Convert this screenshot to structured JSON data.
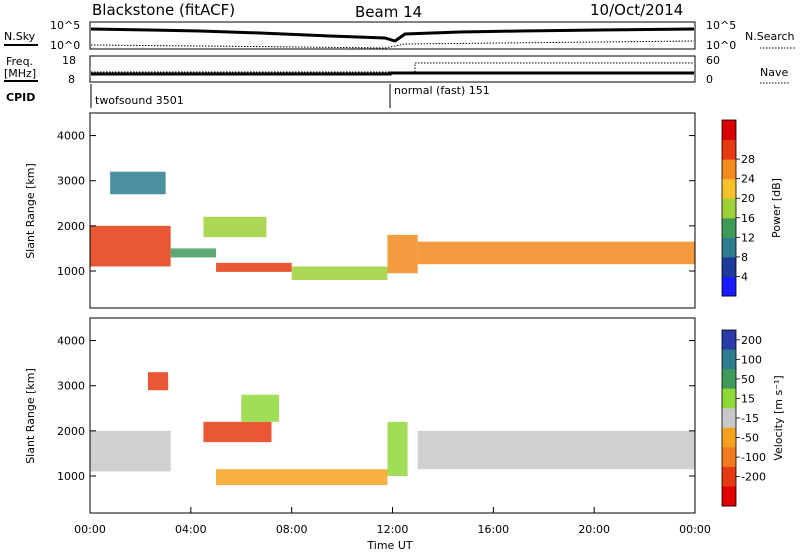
{
  "header": {
    "title": "Blackstone (fitACF)",
    "beam": "Beam 14",
    "date": "10/Oct/2014"
  },
  "top_panels": {
    "nsky_label": "N.Sky",
    "nsky_ticks": [
      "10^5",
      "10^0"
    ],
    "nsearch_label": "N.Search",
    "freq_label_1": "Freq.",
    "freq_label_2": "[MHz]",
    "freq_ticks": [
      "18",
      "8"
    ],
    "nave_ticks": [
      "60",
      "0"
    ],
    "nave_label": "Nave",
    "cpid_label": "CPID",
    "cpid_1": "twofsound 3501",
    "cpid_2": "normal (fast) 151"
  },
  "chart_data": [
    {
      "type": "heatmap",
      "name": "power",
      "ylabel": "Slant Range [km]",
      "xlabel": "",
      "xlim_hours": [
        0,
        24
      ],
      "ylim_km": [
        180,
        4500
      ],
      "y_ticks": [
        "1000",
        "2000",
        "3000",
        "4000"
      ],
      "y_tick_values": [
        1000,
        2000,
        3000,
        4000
      ],
      "colorbar_label": "Power [dB]",
      "colorbar_ticks": [
        "4",
        "8",
        "12",
        "16",
        "20",
        "24",
        "28"
      ],
      "colorbar_colors": [
        "#1a1aff",
        "#1f3a9a",
        "#2e7d8f",
        "#3f9a5a",
        "#9fd03a",
        "#f4c12a",
        "#f28a1e",
        "#e53a12",
        "#d80000"
      ],
      "echo_bands": [
        {
          "t0": 0.0,
          "t1": 3.2,
          "r0": 1100,
          "r1": 2000,
          "level": 26
        },
        {
          "t0": 3.2,
          "t1": 5.0,
          "r0": 1300,
          "r1": 1500,
          "level": 12
        },
        {
          "t0": 5.0,
          "t1": 8.0,
          "r0": 980,
          "r1": 1180,
          "level": 24
        },
        {
          "t0": 8.0,
          "t1": 11.8,
          "r0": 800,
          "r1": 1100,
          "level": 14
        },
        {
          "t0": 11.8,
          "t1": 13.0,
          "r0": 950,
          "r1": 1800,
          "level": 22
        },
        {
          "t0": 13.0,
          "t1": 24.0,
          "r0": 1150,
          "r1": 1650,
          "level": 22
        },
        {
          "t0": 4.5,
          "t1": 7.0,
          "r0": 1750,
          "r1": 2200,
          "level": 16
        },
        {
          "t0": 0.8,
          "t1": 3.0,
          "r0": 2700,
          "r1": 3200,
          "level": 10
        }
      ]
    },
    {
      "type": "heatmap",
      "name": "velocity",
      "ylabel": "Slant Range [km]",
      "xlabel": "Time UT",
      "xlim_hours": [
        0,
        24
      ],
      "ylim_km": [
        180,
        4500
      ],
      "x_ticks": [
        "00:00",
        "04:00",
        "08:00",
        "12:00",
        "16:00",
        "20:00",
        "00:00"
      ],
      "x_tick_values": [
        0,
        4,
        8,
        12,
        16,
        20,
        24
      ],
      "y_ticks": [
        "1000",
        "2000",
        "3000",
        "4000"
      ],
      "y_tick_values": [
        1000,
        2000,
        3000,
        4000
      ],
      "colorbar_label": "Velocity [m s⁻¹]",
      "colorbar_ticks": [
        "200",
        "100",
        "50",
        "15",
        "-15",
        "-50",
        "-100",
        "-200"
      ],
      "colorbar_colors": [
        "#2a3aa8",
        "#2e7d8f",
        "#3f9a5a",
        "#8fd83a",
        "#c8c8c8",
        "#f4a21e",
        "#f27a1e",
        "#e53a12",
        "#e00000"
      ],
      "echo_bands": [
        {
          "t0": 0.0,
          "t1": 3.2,
          "r0": 1100,
          "r1": 2000,
          "v": 0
        },
        {
          "t0": 4.5,
          "t1": 7.2,
          "r0": 1750,
          "r1": 2200,
          "v": -180
        },
        {
          "t0": 5.0,
          "t1": 11.8,
          "r0": 800,
          "r1": 1150,
          "v": -50
        },
        {
          "t0": 11.8,
          "t1": 12.6,
          "r0": 1000,
          "r1": 2200,
          "v": 40
        },
        {
          "t0": 13.0,
          "t1": 24.0,
          "r0": 1150,
          "r1": 2000,
          "v": 0
        },
        {
          "t0": 2.3,
          "t1": 3.1,
          "r0": 2900,
          "r1": 3300,
          "v": -150
        },
        {
          "t0": 6.0,
          "t1": 7.5,
          "r0": 2200,
          "r1": 2800,
          "v": 20
        }
      ]
    }
  ]
}
